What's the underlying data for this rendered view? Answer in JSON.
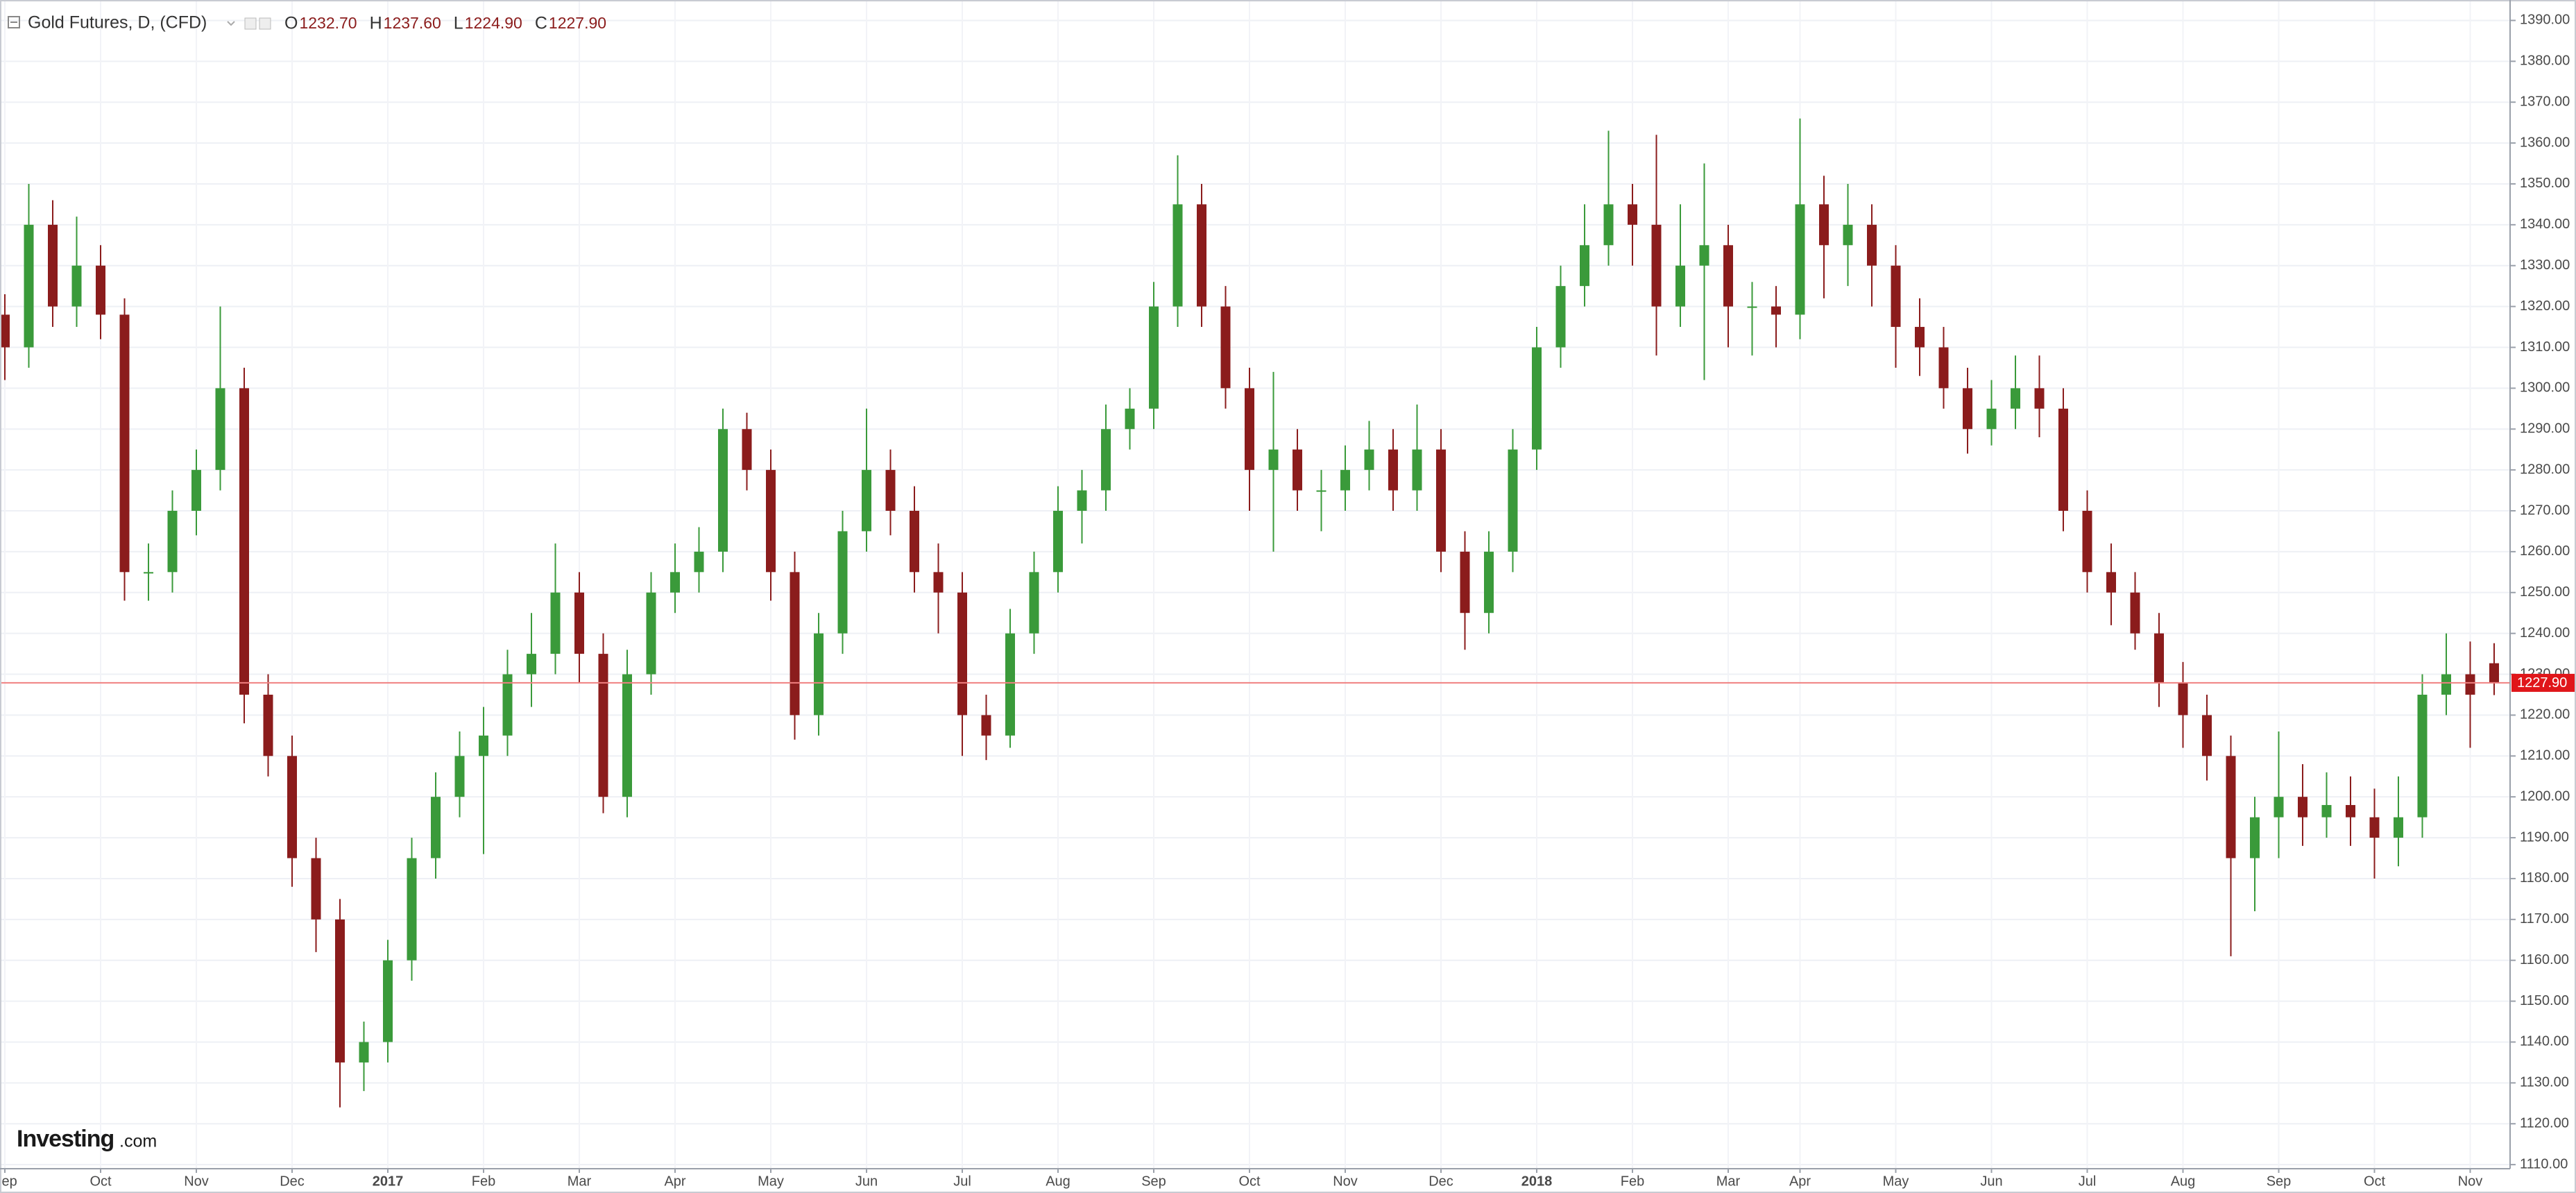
{
  "chart_data": {
    "type": "candlestick",
    "title": "Gold Futures, D, (CFD)",
    "header_ohlc": [
      {
        "label": "O",
        "value": "1232.70"
      },
      {
        "label": "H",
        "value": "1237.60"
      },
      {
        "label": "L",
        "value": "1224.90"
      },
      {
        "label": "C",
        "value": "1227.90"
      }
    ],
    "logo": {
      "brand": "Investing",
      "suffix": ".com"
    },
    "up_color": "#3a9a3a",
    "down_color": "#8b1c1c",
    "grid": true,
    "last_price": {
      "value": 1227.9,
      "label": "1227.90"
    },
    "categories": [
      "Sep",
      null,
      null,
      null,
      "Oct",
      null,
      null,
      null,
      "Nov",
      null,
      null,
      null,
      "Dec",
      null,
      null,
      null,
      "2017",
      null,
      null,
      null,
      "Feb",
      null,
      null,
      null,
      "Mar",
      null,
      null,
      null,
      "Apr",
      null,
      null,
      null,
      "May",
      null,
      null,
      null,
      "Jun",
      null,
      null,
      null,
      "Jul",
      null,
      null,
      null,
      "Aug",
      null,
      null,
      null,
      "Sep",
      null,
      null,
      null,
      "Oct",
      null,
      null,
      null,
      "Nov",
      null,
      null,
      null,
      "Dec",
      null,
      null,
      null,
      "2018",
      null,
      null,
      null,
      "Feb",
      null,
      null,
      null,
      "Mar",
      null,
      null,
      "Apr",
      null,
      null,
      null,
      "May",
      null,
      null,
      null,
      "Jun",
      null,
      null,
      null,
      "Jul",
      null,
      null,
      null,
      "Aug",
      null,
      null,
      null,
      "Sep",
      null,
      null,
      null,
      "Oct",
      null,
      null,
      null,
      "Nov",
      null
    ],
    "open": [
      1318,
      1310,
      1340,
      1320,
      1330,
      1318,
      1255,
      1255,
      1270,
      1280,
      1300,
      1225,
      1210,
      1185,
      1170,
      1135,
      1140,
      1160,
      1185,
      1200,
      1210,
      1215,
      1230,
      1235,
      1250,
      1235,
      1200,
      1230,
      1250,
      1255,
      1260,
      1290,
      1280,
      1255,
      1220,
      1240,
      1265,
      1280,
      1270,
      1255,
      1250,
      1220,
      1215,
      1240,
      1255,
      1270,
      1275,
      1290,
      1295,
      1320,
      1345,
      1320,
      1300,
      1280,
      1285,
      1275,
      1275,
      1280,
      1285,
      1275,
      1285,
      1260,
      1245,
      1260,
      1285,
      1310,
      1325,
      1335,
      1345,
      1340,
      1320,
      1330,
      1335,
      1320,
      1320,
      1318,
      1345,
      1335,
      1340,
      1330,
      1315,
      1310,
      1300,
      1290,
      1295,
      1300,
      1295,
      1270,
      1255,
      1250,
      1240,
      1228,
      1220,
      1210,
      1185,
      1195,
      1200,
      1195,
      1198,
      1195,
      1190,
      1195,
      1225,
      1230,
      1232.7
    ],
    "high": [
      1323,
      1350,
      1346,
      1342,
      1335,
      1322,
      1262,
      1275,
      1285,
      1320,
      1305,
      1230,
      1215,
      1190,
      1175,
      1145,
      1165,
      1190,
      1206,
      1216,
      1222,
      1236,
      1245,
      1262,
      1255,
      1240,
      1236,
      1255,
      1262,
      1266,
      1295,
      1294,
      1285,
      1260,
      1245,
      1270,
      1295,
      1285,
      1276,
      1262,
      1255,
      1225,
      1246,
      1260,
      1276,
      1280,
      1296,
      1300,
      1326,
      1357,
      1350,
      1325,
      1305,
      1304,
      1290,
      1280,
      1286,
      1292,
      1290,
      1296,
      1290,
      1265,
      1265,
      1290,
      1315,
      1330,
      1345,
      1363,
      1350,
      1362,
      1345,
      1355,
      1340,
      1326,
      1325,
      1366,
      1352,
      1350,
      1345,
      1335,
      1322,
      1315,
      1305,
      1302,
      1308,
      1308,
      1300,
      1275,
      1262,
      1255,
      1245,
      1233,
      1225,
      1215,
      1200,
      1216,
      1208,
      1206,
      1205,
      1202,
      1205,
      1230,
      1240,
      1238,
      1237.6
    ],
    "low": [
      1302,
      1305,
      1315,
      1315,
      1312,
      1248,
      1248,
      1250,
      1264,
      1275,
      1218,
      1205,
      1178,
      1162,
      1124,
      1128,
      1135,
      1155,
      1180,
      1195,
      1186,
      1210,
      1222,
      1230,
      1228,
      1196,
      1195,
      1225,
      1245,
      1250,
      1255,
      1275,
      1248,
      1214,
      1215,
      1235,
      1260,
      1264,
      1250,
      1240,
      1210,
      1209,
      1212,
      1235,
      1250,
      1262,
      1270,
      1285,
      1290,
      1315,
      1315,
      1295,
      1270,
      1260,
      1270,
      1265,
      1270,
      1275,
      1270,
      1270,
      1255,
      1236,
      1240,
      1255,
      1280,
      1305,
      1320,
      1330,
      1330,
      1308,
      1315,
      1302,
      1310,
      1308,
      1310,
      1312,
      1322,
      1325,
      1320,
      1305,
      1303,
      1295,
      1284,
      1286,
      1290,
      1288,
      1265,
      1250,
      1242,
      1236,
      1222,
      1212,
      1204,
      1161,
      1172,
      1185,
      1188,
      1190,
      1188,
      1180,
      1183,
      1190,
      1220,
      1212,
      1224.9
    ],
    "close": [
      1310,
      1340,
      1320,
      1330,
      1318,
      1255,
      1255,
      1270,
      1280,
      1300,
      1225,
      1210,
      1185,
      1170,
      1135,
      1140,
      1160,
      1185,
      1200,
      1210,
      1215,
      1230,
      1235,
      1250,
      1235,
      1200,
      1230,
      1250,
      1255,
      1260,
      1290,
      1280,
      1255,
      1220,
      1240,
      1265,
      1280,
      1270,
      1255,
      1250,
      1220,
      1215,
      1240,
      1255,
      1270,
      1275,
      1290,
      1295,
      1320,
      1345,
      1320,
      1300,
      1280,
      1285,
      1275,
      1275,
      1280,
      1285,
      1275,
      1285,
      1260,
      1245,
      1260,
      1285,
      1310,
      1325,
      1335,
      1345,
      1340,
      1320,
      1330,
      1335,
      1320,
      1320,
      1318,
      1345,
      1335,
      1340,
      1330,
      1315,
      1310,
      1300,
      1290,
      1295,
      1300,
      1295,
      1270,
      1255,
      1250,
      1240,
      1228,
      1220,
      1210,
      1185,
      1195,
      1200,
      1195,
      1198,
      1195,
      1190,
      1195,
      1225,
      1230,
      1225,
      1227.9
    ],
    "ylim": [
      1109,
      1395
    ],
    "yticks": [
      {
        "value": 1110,
        "label": "1110.00"
      },
      {
        "value": 1120,
        "label": "1120.00"
      },
      {
        "value": 1130,
        "label": "1130.00"
      },
      {
        "value": 1140,
        "label": "1140.00"
      },
      {
        "value": 1150,
        "label": "1150.00"
      },
      {
        "value": 1160,
        "label": "1160.00"
      },
      {
        "value": 1170,
        "label": "1170.00"
      },
      {
        "value": 1180,
        "label": "1180.00"
      },
      {
        "value": 1190,
        "label": "1190.00"
      },
      {
        "value": 1200,
        "label": "1200.00"
      },
      {
        "value": 1210,
        "label": "1210.00"
      },
      {
        "value": 1220,
        "label": "1220.00"
      },
      {
        "value": 1230,
        "label": "1230.00"
      },
      {
        "value": 1240,
        "label": "1240.00"
      },
      {
        "value": 1250,
        "label": "1250.00"
      },
      {
        "value": 1260,
        "label": "1260.00"
      },
      {
        "value": 1270,
        "label": "1270.00"
      },
      {
        "value": 1280,
        "label": "1280.00"
      },
      {
        "value": 1290,
        "label": "1290.00"
      },
      {
        "value": 1300,
        "label": "1300.00"
      },
      {
        "value": 1310,
        "label": "1310.00"
      },
      {
        "value": 1320,
        "label": "1320.00"
      },
      {
        "value": 1330,
        "label": "1330.00"
      },
      {
        "value": 1340,
        "label": "1340.00"
      },
      {
        "value": 1350,
        "label": "1350.00"
      },
      {
        "value": 1360,
        "label": "1360.00"
      },
      {
        "value": 1370,
        "label": "1370.00"
      },
      {
        "value": 1380,
        "label": "1380.00"
      },
      {
        "value": 1390,
        "label": "1390.00"
      }
    ]
  }
}
